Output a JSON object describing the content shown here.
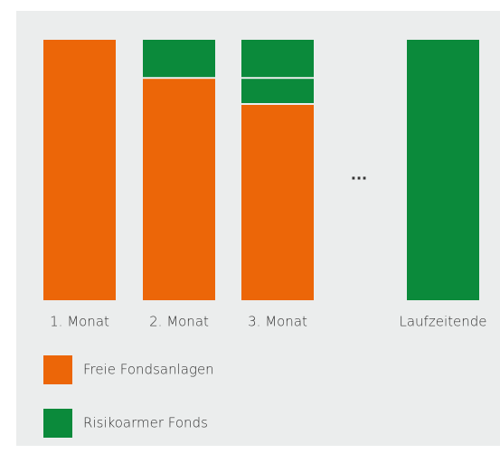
{
  "chart_data": {
    "type": "bar",
    "stacked": true,
    "categories": [
      "1. Monat",
      "2. Monat",
      "3. Monat",
      null,
      "Laufzeitende"
    ],
    "annotation": "...",
    "ylim": [
      0,
      100
    ],
    "series": [
      {
        "name": "Freie Fondsanlagen",
        "color": "#ec6608",
        "values": [
          100,
          85,
          75,
          null,
          0
        ]
      },
      {
        "name": "Risikoarmer Fonds",
        "color": "#0b8a3b",
        "values": [
          0,
          15,
          10,
          null,
          100
        ]
      },
      {
        "color": "#0b8a3b",
        "values": [
          0,
          0,
          15,
          null,
          0
        ]
      }
    ]
  }
}
